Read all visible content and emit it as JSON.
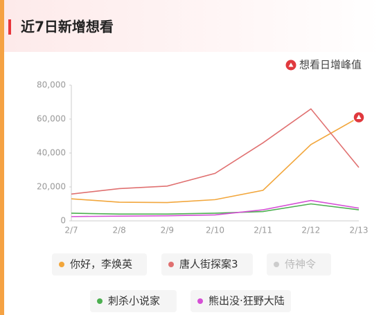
{
  "chart_data": {
    "type": "line",
    "title": "近7日新增想看",
    "categories": [
      "2/7",
      "2/8",
      "2/9",
      "2/10",
      "2/11",
      "2/12",
      "2/13"
    ],
    "ylim": [
      0,
      80000
    ],
    "yticks": [
      0,
      {
        "value": 20000,
        "label": "20,000"
      },
      {
        "value": 40000,
        "label": "40,000"
      },
      {
        "value": 60000,
        "label": "60,000"
      },
      {
        "value": 80000,
        "label": "80,000"
      }
    ],
    "series": [
      {
        "name": "你好，李焕英",
        "color": "#f2a63b",
        "visible": true,
        "values": [
          13000,
          11000,
          10800,
          12500,
          18000,
          45000,
          61000
        ]
      },
      {
        "name": "唐人街探案3",
        "color": "#e07070",
        "visible": true,
        "values": [
          15800,
          19000,
          20500,
          28000,
          46000,
          66000,
          31500
        ]
      },
      {
        "name": "侍神令",
        "color": "#cccccc",
        "visible": false,
        "values": [
          null,
          null,
          null,
          null,
          null,
          null,
          null
        ]
      },
      {
        "name": "刺杀小说家",
        "color": "#4caf50",
        "visible": true,
        "values": [
          4500,
          4000,
          4000,
          4500,
          5500,
          10000,
          6500
        ]
      },
      {
        "name": "熊出没·狂野大陆",
        "color": "#d54fd5",
        "visible": true,
        "values": [
          2500,
          2800,
          3000,
          3500,
          6500,
          12000,
          7500
        ]
      }
    ],
    "peak": {
      "label": "想看日增峰值",
      "series": 0,
      "index": 6,
      "color": "#e0393e"
    }
  }
}
